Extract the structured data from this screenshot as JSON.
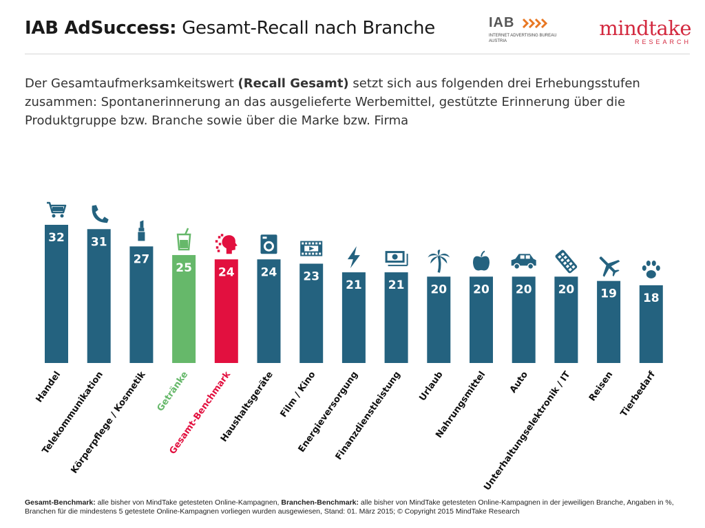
{
  "header": {
    "title_bold": "IAB AdSuccess:",
    "title_rest": " Gesamt-Recall nach Branche",
    "iab_logo": {
      "mark": "IAB",
      "line1": "INTERNET ADVERTISING BUREAU",
      "line2": "AUSTRIA"
    },
    "mindtake_logo": {
      "word": "mindtake",
      "sub": "RESEARCH"
    }
  },
  "intro": {
    "part1": "Der Gesamtaufmerksamkeitswert ",
    "bold": "(Recall Gesamt)",
    "part2": " setzt sich aus folgenden drei Erhebungsstufen zusammen: Spontanerinnerung an das ausgelieferte Werbemittel, gestützte Erinnerung über die Produktgruppe bzw. Branche sowie über die Marke bzw. Firma"
  },
  "colors": {
    "bar": "#24627f",
    "beverage": "#66b86a",
    "benchmark": "#e2103f",
    "label": "#111111",
    "value": "#ffffff"
  },
  "chart_data": {
    "type": "bar",
    "title": "",
    "xlabel": "",
    "ylabel": "",
    "ylim": [
      0,
      32
    ],
    "grid": false,
    "legend": "none",
    "categories": [
      "Handel",
      "Telekommunikation",
      "Körperpflege / Kosmetik",
      "Getränke",
      "Gesamt-Benchmark",
      "Haushaltsgeräte",
      "Film / Kino",
      "Energieversorgung",
      "Finanzdienstleistung",
      "Urlaub",
      "Nahrungsmittel",
      "Auto",
      "Unterhaltungselektronik / IT",
      "Reisen",
      "Tierbedarf"
    ],
    "values": [
      32,
      31,
      27,
      25,
      24,
      24,
      23,
      21,
      21,
      20,
      20,
      20,
      20,
      19,
      18
    ],
    "highlight": {
      "Getränke": "beverage",
      "Gesamt-Benchmark": "benchmark"
    },
    "icons": [
      "shopping-cart-icon",
      "telephone-icon",
      "lipstick-icon",
      "drink-glass-icon",
      "head-icon",
      "washing-machine-icon",
      "film-icon",
      "lightning-icon",
      "banknote-icon",
      "palm-tree-icon",
      "apple-icon",
      "car-icon",
      "remote-control-icon",
      "airplane-icon",
      "paw-icon"
    ]
  },
  "footnote": {
    "bold1": "Gesamt-Benchmark:",
    "text1": " alle bisher von MindTake getesteten Online-Kampagnen, ",
    "bold2": "Branchen-Benchmark:",
    "text2": " alle bisher von MindTake getesteten Online-Kampagnen in der jeweiligen Branche, Angaben in %, Branchen für die mindestens 5 getestete Online-Kampagnen vorliegen wurden ausgewiesen, Stand: 01. März 2015; © Copyright 2015 MindTake Research"
  }
}
